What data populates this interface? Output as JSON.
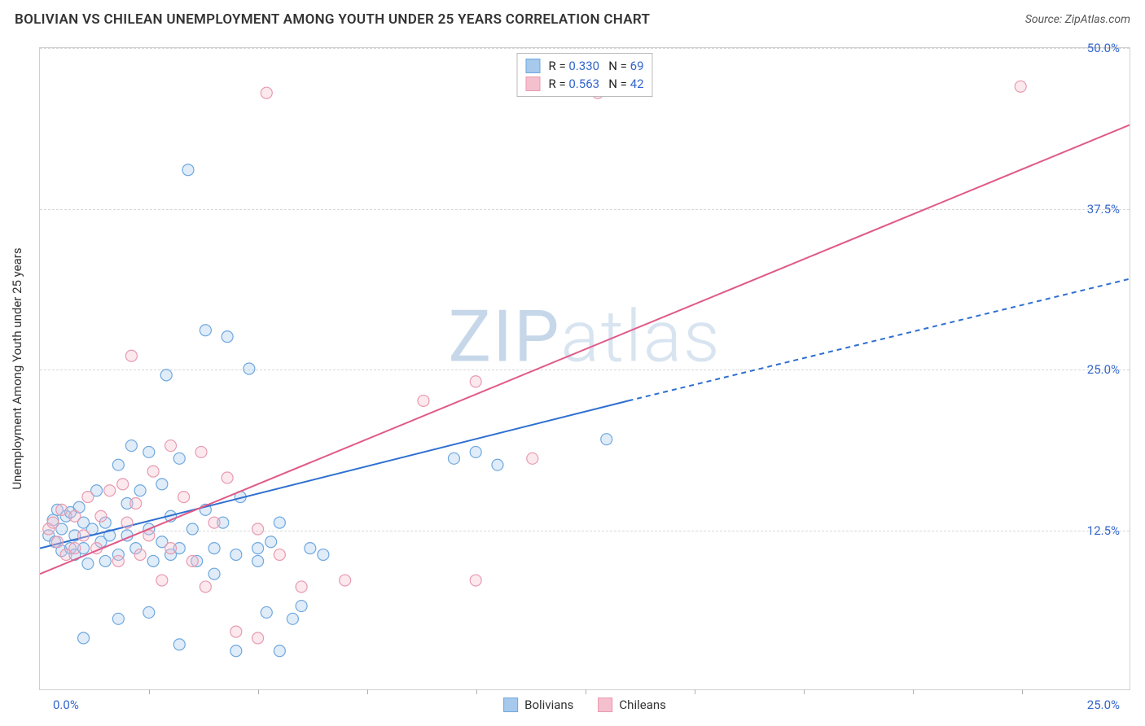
{
  "header": {
    "title": "BOLIVIAN VS CHILEAN UNEMPLOYMENT AMONG YOUTH UNDER 25 YEARS CORRELATION CHART",
    "source_prefix": "Source: ",
    "source_name": "ZipAtlas.com"
  },
  "watermark": {
    "zip": "ZIP",
    "atlas": "atlas"
  },
  "chart": {
    "type": "scatter",
    "y_axis_title": "Unemployment Among Youth under 25 years",
    "background_color": "#ffffff",
    "grid_color": "#d8d8d8",
    "axis_color": "#d0d0d0",
    "label_color": "#3366cc",
    "xlim": [
      0,
      25
    ],
    "ylim": [
      0,
      50
    ],
    "x_origin_label": "0.0%",
    "x_max_label": "25.0%",
    "y_ticks": [
      {
        "v": 12.5,
        "label": "12.5%"
      },
      {
        "v": 25.0,
        "label": "25.0%"
      },
      {
        "v": 37.5,
        "label": "37.5%"
      },
      {
        "v": 50.0,
        "label": "50.0%"
      }
    ],
    "x_tick_step": 2.5,
    "marker_radius": 7,
    "marker_stroke_width": 1.2,
    "marker_fill_opacity": 0.35,
    "trend_line_width": 2,
    "series": [
      {
        "key": "bolivians",
        "label": "Bolivians",
        "color_stroke": "#6ea8e0",
        "color_fill": "#a6c9ec",
        "trend_color": "#2e6fd0",
        "r_label": "R = ",
        "r_value": "0.330",
        "n_label": "N = ",
        "n_value": "69",
        "trend_line": {
          "x1": 0,
          "y1": 11.0,
          "x2": 13.5,
          "y2": 22.5,
          "solid": true
        },
        "trend_extrapolate": {
          "x1": 13.5,
          "y1": 22.5,
          "x2": 25,
          "y2": 32.0
        },
        "points": [
          [
            0.2,
            12.0
          ],
          [
            0.3,
            13.2
          ],
          [
            0.35,
            11.5
          ],
          [
            0.4,
            14.0
          ],
          [
            0.5,
            12.5
          ],
          [
            0.5,
            10.8
          ],
          [
            0.6,
            13.5
          ],
          [
            0.7,
            11.0
          ],
          [
            0.7,
            13.8
          ],
          [
            0.8,
            12.0
          ],
          [
            0.8,
            10.5
          ],
          [
            0.9,
            14.2
          ],
          [
            1.0,
            13.0
          ],
          [
            1.0,
            11.0
          ],
          [
            1.1,
            9.8
          ],
          [
            1.2,
            12.5
          ],
          [
            1.3,
            15.5
          ],
          [
            1.4,
            11.5
          ],
          [
            1.5,
            10.0
          ],
          [
            1.5,
            13.0
          ],
          [
            1.6,
            12.0
          ],
          [
            1.8,
            17.5
          ],
          [
            1.8,
            10.5
          ],
          [
            2.0,
            14.5
          ],
          [
            2.0,
            12.0
          ],
          [
            2.1,
            19.0
          ],
          [
            2.2,
            11.0
          ],
          [
            2.3,
            15.5
          ],
          [
            2.5,
            12.5
          ],
          [
            2.5,
            18.5
          ],
          [
            2.6,
            10.0
          ],
          [
            2.8,
            11.5
          ],
          [
            2.8,
            16.0
          ],
          [
            2.9,
            24.5
          ],
          [
            3.0,
            13.5
          ],
          [
            3.0,
            10.5
          ],
          [
            3.2,
            11.0
          ],
          [
            3.2,
            18.0
          ],
          [
            3.4,
            40.5
          ],
          [
            3.5,
            12.5
          ],
          [
            3.6,
            10.0
          ],
          [
            3.8,
            14.0
          ],
          [
            3.8,
            28.0
          ],
          [
            4.0,
            11.0
          ],
          [
            4.0,
            9.0
          ],
          [
            4.2,
            13.0
          ],
          [
            4.3,
            27.5
          ],
          [
            4.5,
            10.5
          ],
          [
            4.5,
            3.0
          ],
          [
            4.6,
            15.0
          ],
          [
            4.8,
            25.0
          ],
          [
            5.0,
            11.0
          ],
          [
            5.0,
            10.0
          ],
          [
            5.2,
            6.0
          ],
          [
            5.3,
            11.5
          ],
          [
            5.5,
            13.0
          ],
          [
            5.5,
            3.0
          ],
          [
            5.8,
            5.5
          ],
          [
            6.0,
            6.5
          ],
          [
            6.2,
            11.0
          ],
          [
            6.5,
            10.5
          ],
          [
            1.0,
            4.0
          ],
          [
            1.8,
            5.5
          ],
          [
            2.5,
            6.0
          ],
          [
            3.2,
            3.5
          ],
          [
            9.5,
            18.0
          ],
          [
            10.0,
            18.5
          ],
          [
            10.5,
            17.5
          ],
          [
            13.0,
            19.5
          ]
        ]
      },
      {
        "key": "chileans",
        "label": "Chileans",
        "color_stroke": "#e89ab0",
        "color_fill": "#f4c0ce",
        "trend_color": "#e05a88",
        "r_label": "R = ",
        "r_value": "0.563",
        "n_label": "N = ",
        "n_value": "42",
        "trend_line": {
          "x1": 0,
          "y1": 9.0,
          "x2": 25,
          "y2": 44.0,
          "solid": true
        },
        "trend_extrapolate": null,
        "points": [
          [
            0.2,
            12.5
          ],
          [
            0.3,
            13.0
          ],
          [
            0.4,
            11.5
          ],
          [
            0.5,
            14.0
          ],
          [
            0.6,
            10.5
          ],
          [
            0.8,
            13.5
          ],
          [
            0.8,
            11.0
          ],
          [
            1.0,
            12.0
          ],
          [
            1.1,
            15.0
          ],
          [
            1.3,
            11.0
          ],
          [
            1.4,
            13.5
          ],
          [
            1.6,
            15.5
          ],
          [
            1.8,
            10.0
          ],
          [
            1.9,
            16.0
          ],
          [
            2.0,
            13.0
          ],
          [
            2.1,
            26.0
          ],
          [
            2.2,
            14.5
          ],
          [
            2.3,
            10.5
          ],
          [
            2.5,
            12.0
          ],
          [
            2.6,
            17.0
          ],
          [
            2.8,
            8.5
          ],
          [
            3.0,
            19.0
          ],
          [
            3.0,
            11.0
          ],
          [
            3.3,
            15.0
          ],
          [
            3.5,
            10.0
          ],
          [
            3.7,
            18.5
          ],
          [
            3.8,
            8.0
          ],
          [
            4.0,
            13.0
          ],
          [
            4.3,
            16.5
          ],
          [
            4.5,
            4.5
          ],
          [
            5.0,
            4.0
          ],
          [
            5.0,
            12.5
          ],
          [
            5.2,
            46.5
          ],
          [
            5.5,
            10.5
          ],
          [
            6.0,
            8.0
          ],
          [
            7.0,
            8.5
          ],
          [
            8.8,
            22.5
          ],
          [
            10.0,
            24.0
          ],
          [
            10.0,
            8.5
          ],
          [
            11.3,
            18.0
          ],
          [
            12.8,
            46.5
          ],
          [
            22.5,
            47.0
          ]
        ]
      }
    ]
  }
}
